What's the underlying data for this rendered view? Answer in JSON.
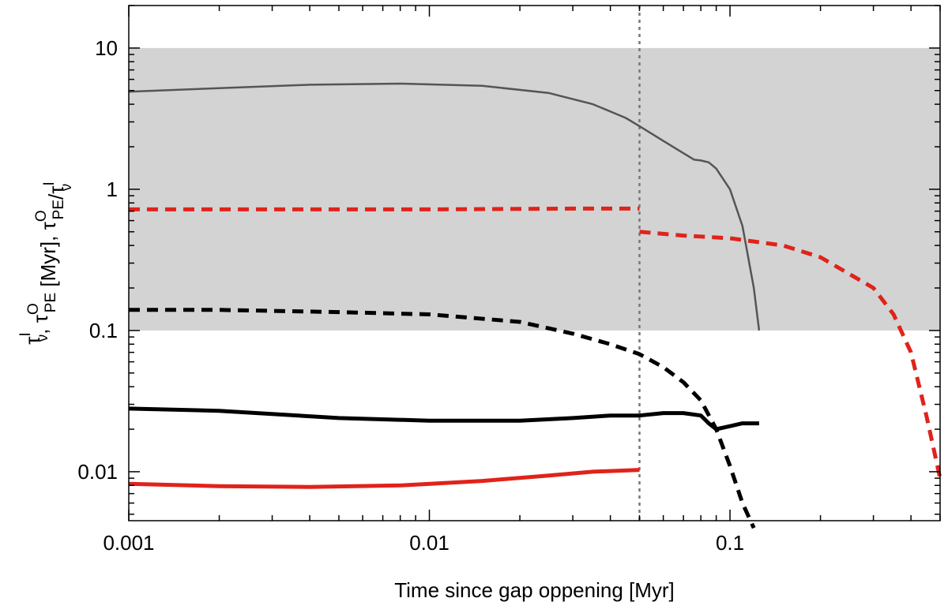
{
  "chart_data": {
    "type": "line",
    "title": "",
    "xlabel": "Time since gap oppening [Myr]",
    "ylabel": {
      "parts": [
        {
          "text": "τ",
          "sup": "I",
          "sub": "ν"
        },
        {
          "text": ", τ",
          "sup": "O",
          "sub": "PE"
        },
        {
          "text": " [Myr], τ",
          "sup": "O",
          "sub": "PE"
        },
        {
          "text": "/τ",
          "sup": "I",
          "sub": "ν"
        }
      ]
    },
    "x_scale": "log",
    "y_scale": "log",
    "xlim": [
      0.001,
      0.5
    ],
    "ylim": [
      0.0045,
      20
    ],
    "x_ticks": [
      {
        "value": 0.001,
        "label": "0.001"
      },
      {
        "value": 0.01,
        "label": "0.01"
      },
      {
        "value": 0.1,
        "label": "0.1"
      }
    ],
    "y_ticks": [
      {
        "value": 0.01,
        "label": "0.01"
      },
      {
        "value": 0.1,
        "label": "0.1"
      },
      {
        "value": 1,
        "label": "1"
      },
      {
        "value": 10,
        "label": "10"
      }
    ],
    "grid": false,
    "legend": "none",
    "shaded_band": {
      "y_min": 0.1,
      "y_max": 10,
      "color": "#d3d3d3"
    },
    "vertical_line": {
      "x": 0.05,
      "color": "#777777",
      "style": "dotted"
    },
    "series": [
      {
        "color": "#555555",
        "style": "solid",
        "width": 2.5,
        "x": [
          0.001,
          0.002,
          0.004,
          0.008,
          0.015,
          0.025,
          0.035,
          0.045,
          0.05,
          0.06,
          0.07,
          0.076,
          0.08,
          0.085,
          0.09,
          0.1,
          0.11,
          0.12,
          0.125
        ],
        "y": [
          4.9,
          5.2,
          5.5,
          5.6,
          5.4,
          4.8,
          4.0,
          3.2,
          2.8,
          2.2,
          1.8,
          1.62,
          1.6,
          1.55,
          1.4,
          1.0,
          0.55,
          0.2,
          0.1
        ]
      },
      {
        "color": "#e0231b",
        "style": "dashed",
        "width": 5,
        "x": [
          0.001,
          0.01,
          0.03,
          0.05
        ],
        "y": [
          0.72,
          0.72,
          0.73,
          0.73
        ]
      },
      {
        "color": "#e0231b",
        "style": "dashed",
        "width": 5,
        "x": [
          0.05,
          0.07,
          0.1,
          0.15,
          0.2,
          0.3,
          0.35,
          0.4,
          0.45,
          0.5
        ],
        "y": [
          0.5,
          0.47,
          0.45,
          0.4,
          0.33,
          0.2,
          0.13,
          0.07,
          0.025,
          0.009
        ]
      },
      {
        "color": "#000000",
        "style": "dashed",
        "width": 5,
        "x": [
          0.001,
          0.002,
          0.005,
          0.01,
          0.02,
          0.03,
          0.04,
          0.05,
          0.06,
          0.07,
          0.08,
          0.09,
          0.1,
          0.11,
          0.12
        ],
        "y": [
          0.14,
          0.14,
          0.135,
          0.13,
          0.115,
          0.095,
          0.08,
          0.068,
          0.055,
          0.043,
          0.032,
          0.02,
          0.011,
          0.006,
          0.004
        ]
      },
      {
        "color": "#000000",
        "style": "solid",
        "width": 5,
        "x": [
          0.001,
          0.002,
          0.005,
          0.01,
          0.02,
          0.03,
          0.04,
          0.05,
          0.06,
          0.07,
          0.08,
          0.085,
          0.09,
          0.1,
          0.11,
          0.125
        ],
        "y": [
          0.028,
          0.027,
          0.024,
          0.023,
          0.023,
          0.024,
          0.025,
          0.025,
          0.026,
          0.026,
          0.025,
          0.022,
          0.02,
          0.021,
          0.022,
          0.022
        ]
      },
      {
        "color": "#e0231b",
        "style": "solid",
        "width": 5,
        "x": [
          0.001,
          0.002,
          0.004,
          0.008,
          0.015,
          0.025,
          0.035,
          0.05
        ],
        "y": [
          0.0082,
          0.0079,
          0.0078,
          0.008,
          0.0086,
          0.0094,
          0.01,
          0.0103
        ]
      }
    ]
  }
}
